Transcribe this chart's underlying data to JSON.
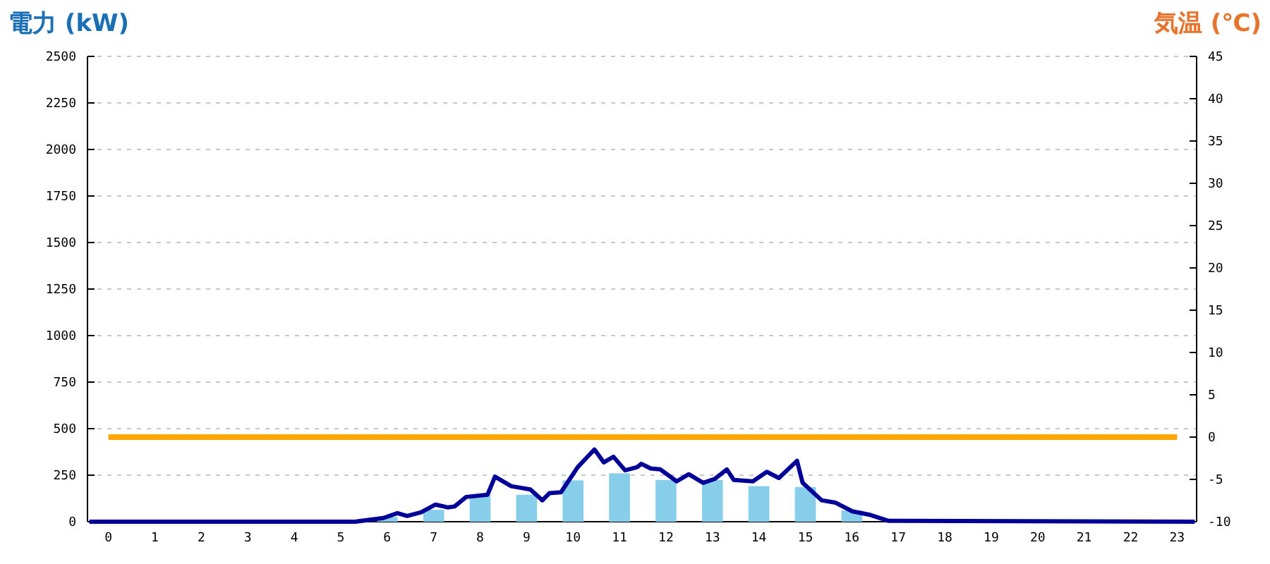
{
  "chart_data": {
    "type": "bar",
    "ylabel": "電力 (kW)",
    "y2label": "気温 (℃)",
    "x": [
      0,
      1,
      2,
      3,
      4,
      5,
      6,
      7,
      8,
      9,
      10,
      11,
      12,
      13,
      14,
      15,
      16,
      17,
      18,
      19,
      20,
      21,
      22,
      23
    ],
    "xlim": [
      -0.45,
      23.42
    ],
    "xticks": [
      0,
      1,
      2,
      3,
      4,
      5,
      6,
      7,
      8,
      9,
      10,
      11,
      12,
      13,
      14,
      15,
      16,
      17,
      18,
      19,
      20,
      21,
      22,
      23
    ],
    "ylim": [
      0,
      2500
    ],
    "yticks": [
      0,
      250,
      500,
      750,
      1000,
      1250,
      1500,
      1750,
      2000,
      2250,
      2500
    ],
    "y2lim": [
      -10,
      45
    ],
    "y2ticks": [
      -10,
      -5,
      0,
      5,
      10,
      15,
      20,
      25,
      30,
      35,
      40,
      45
    ],
    "grid": "y",
    "legend": false,
    "marker": "none",
    "line_style": "solid",
    "series": [
      {
        "color": "#87ceeb",
        "values": [
          0,
          0,
          0,
          0,
          0,
          0,
          25,
          64,
          145,
          145,
          222,
          260,
          224,
          224,
          191,
          186,
          60,
          0,
          0,
          0,
          0,
          0,
          0,
          0
        ]
      },
      {
        "type": "line",
        "color": "#000099",
        "x": [
          -0.41,
          5.31,
          5.92,
          6.22,
          6.43,
          6.73,
          7.04,
          7.3,
          7.45,
          7.7,
          8.16,
          8.32,
          8.67,
          9.08,
          9.34,
          9.49,
          9.74,
          10.1,
          10.46,
          10.66,
          10.87,
          11.12,
          11.38,
          11.47,
          11.67,
          11.88,
          12.23,
          12.49,
          12.8,
          13.05,
          13.31,
          13.46,
          13.87,
          14.17,
          14.43,
          14.82,
          14.94,
          15.35,
          15.65,
          16.01,
          16.37,
          16.78,
          23.38
        ],
        "values": [
          0,
          0,
          20,
          46,
          31,
          51,
          92,
          77,
          82,
          133,
          145,
          242,
          191,
          173,
          115,
          153,
          158,
          293,
          388,
          319,
          349,
          276,
          293,
          311,
          286,
          281,
          217,
          255,
          209,
          230,
          281,
          224,
          217,
          268,
          235,
          327,
          209,
          115,
          102,
          56,
          38,
          5,
          0
        ]
      },
      {
        "type": "line",
        "color": "#ffa500",
        "axis": "y2",
        "x": [
          0,
          23
        ],
        "values": [
          0,
          0
        ]
      }
    ]
  }
}
